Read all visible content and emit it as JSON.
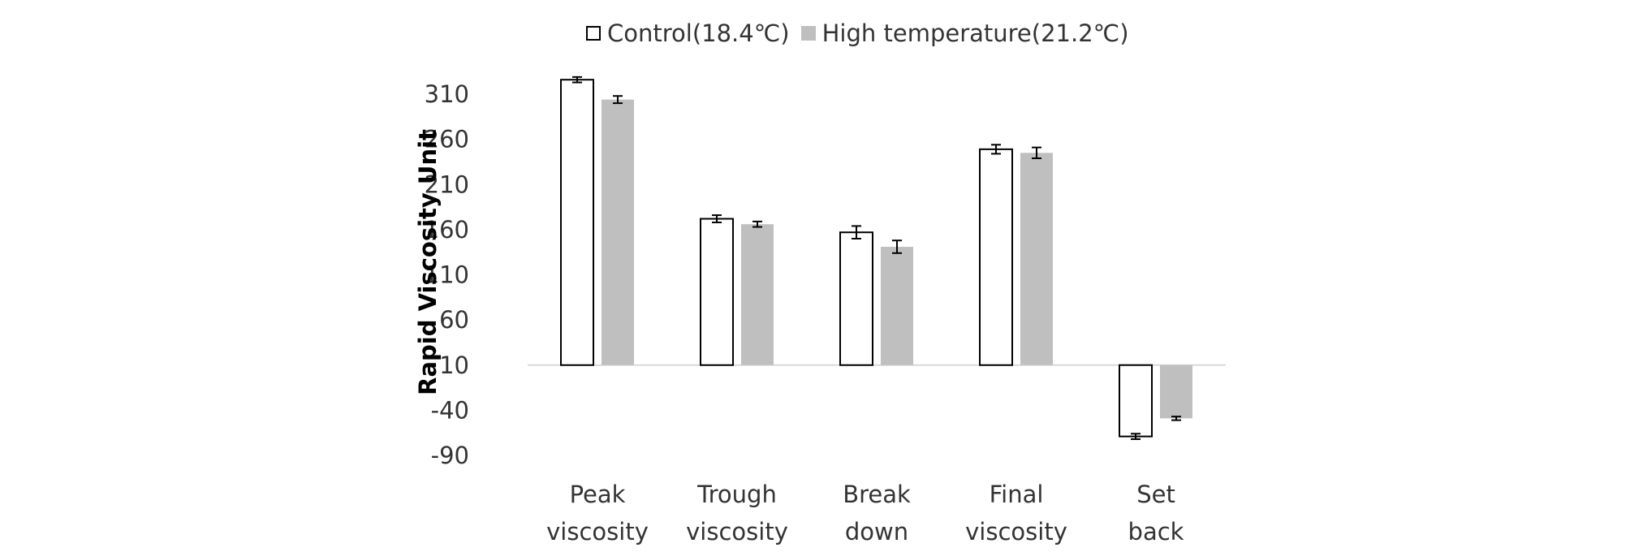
{
  "chart_data": {
    "type": "bar",
    "title": "",
    "ylabel": "Rapid Viscosity Unit",
    "xlabel": "",
    "ylim": [
      -90,
      310
    ],
    "yticks": [
      310,
      260,
      210,
      160,
      110,
      60,
      10,
      -40,
      -90
    ],
    "baseline": 10,
    "legend_position": "top-center",
    "categories": [
      [
        "Peak",
        "viscosity"
      ],
      [
        "Trough",
        "viscosity"
      ],
      [
        "Break",
        "down"
      ],
      [
        "Final",
        "viscosity"
      ],
      [
        "Set",
        "back"
      ]
    ],
    "series": [
      {
        "name": "Control(18.4℃)",
        "color": "#ffffff",
        "stroke": "#000000",
        "values": [
          326,
          172,
          157,
          249,
          -69
        ],
        "errors": [
          3,
          4,
          7,
          5,
          3
        ]
      },
      {
        "name": "High temperature(21.2℃)",
        "color": "#bfbfbf",
        "stroke": "none",
        "values": [
          304,
          166,
          141,
          245,
          -49
        ],
        "errors": [
          4,
          3,
          7,
          6,
          2
        ]
      }
    ]
  }
}
